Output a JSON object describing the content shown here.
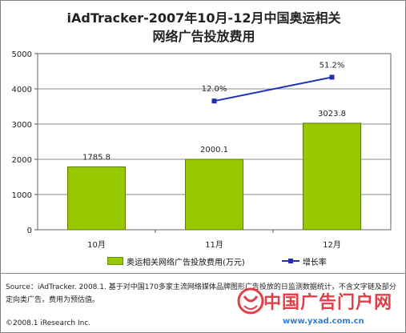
{
  "title_line1": "iAdTracker-2007年10月-12月中国奥运相关",
  "title_line2": "网络广告投放费用",
  "source": "Source：iAdTracker. 2008.1. 基于对中国170多家主流网络媒体品牌图形广告投放的日监测数据统计，不含文字链及部分定向类广告，费用为预估值。",
  "copyright": "©2008.1 iResearch Inc.",
  "watermark": {
    "text": "中国广告门户网",
    "url": "www.yxad.com.cn"
  },
  "chart_data": {
    "type": "bar",
    "categories": [
      "10月",
      "11月",
      "12月"
    ],
    "series": [
      {
        "name": "奥运相关网络广告投放费用(万元)",
        "type": "bar",
        "values": [
          1785.8,
          2000.1,
          3023.8
        ],
        "labels": [
          "1785.8",
          "2000.1",
          "3023.8"
        ],
        "color": "#98c800"
      },
      {
        "name": "增长率",
        "type": "line",
        "values": [
          null,
          12.0,
          51.2
        ],
        "labels": [
          "",
          "12.0%",
          "51.2%"
        ],
        "color": "#1f2fb8"
      }
    ],
    "ylim": [
      0,
      5000
    ],
    "yticks": [
      "0",
      "1000",
      "2000",
      "3000",
      "4000",
      "5000"
    ],
    "legend_position": "bottom"
  }
}
